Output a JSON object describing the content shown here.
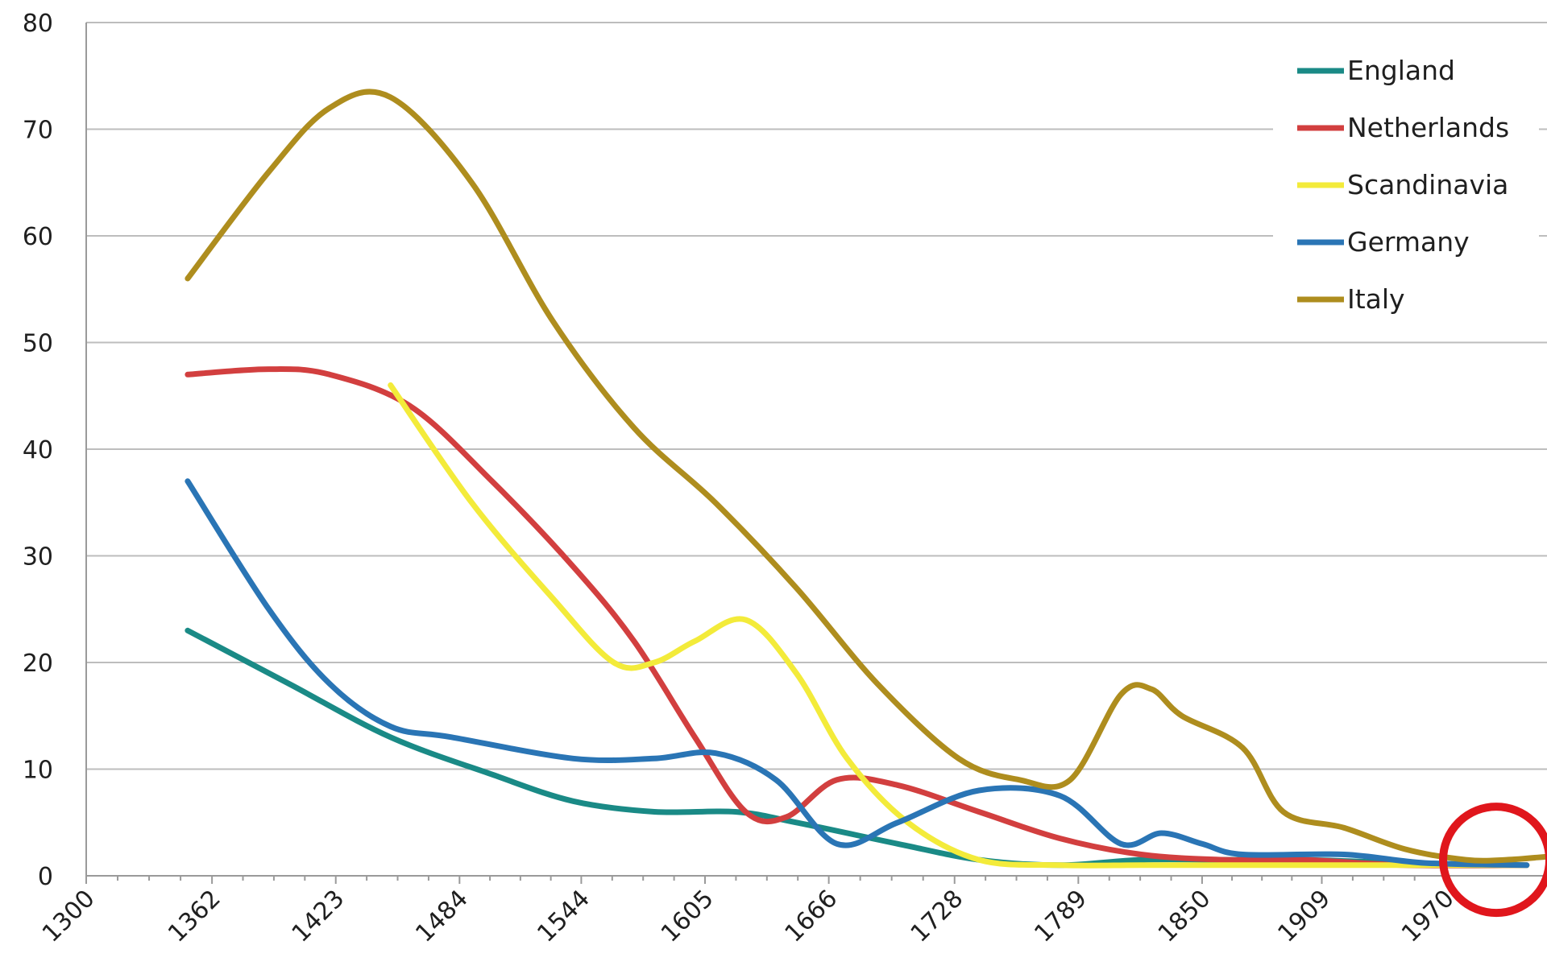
{
  "chart_data": {
    "type": "line",
    "title": "",
    "xlabel": "",
    "ylabel": "",
    "xlim": [
      1300,
      2020
    ],
    "ylim": [
      0,
      80
    ],
    "grid": true,
    "legend_position": "top-right",
    "x_ticks": [
      "1300",
      "1362",
      "1423",
      "1484",
      "1544",
      "1605",
      "1666",
      "1728",
      "1789",
      "1850",
      "1909",
      "1970"
    ],
    "y_ticks": [
      "0",
      "10",
      "20",
      "30",
      "40",
      "50",
      "60",
      "70",
      "80"
    ],
    "series": [
      {
        "name": "England",
        "color": "#1a8a86",
        "points": [
          [
            1350,
            23
          ],
          [
            1400,
            18
          ],
          [
            1450,
            13
          ],
          [
            1500,
            9.5
          ],
          [
            1540,
            7
          ],
          [
            1580,
            6
          ],
          [
            1620,
            6
          ],
          [
            1650,
            5
          ],
          [
            1700,
            3
          ],
          [
            1740,
            1.5
          ],
          [
            1780,
            1
          ],
          [
            1820,
            1.5
          ],
          [
            1860,
            1.5
          ],
          [
            1900,
            1.5
          ],
          [
            1950,
            1.2
          ],
          [
            2010,
            1
          ]
        ]
      },
      {
        "name": "Netherlands",
        "color": "#d23f3f",
        "points": [
          [
            1350,
            47
          ],
          [
            1390,
            47.5
          ],
          [
            1420,
            47
          ],
          [
            1460,
            44
          ],
          [
            1500,
            37
          ],
          [
            1540,
            29
          ],
          [
            1570,
            22
          ],
          [
            1600,
            13
          ],
          [
            1625,
            6
          ],
          [
            1645,
            5.5
          ],
          [
            1670,
            9
          ],
          [
            1700,
            8.5
          ],
          [
            1740,
            6
          ],
          [
            1780,
            3.5
          ],
          [
            1820,
            2
          ],
          [
            1860,
            1.5
          ],
          [
            1900,
            1.5
          ],
          [
            1950,
            1
          ],
          [
            2010,
            1
          ]
        ]
      },
      {
        "name": "Scandinavia",
        "color": "#f3eb3a",
        "points": [
          [
            1450,
            46
          ],
          [
            1490,
            35
          ],
          [
            1530,
            26
          ],
          [
            1560,
            20
          ],
          [
            1580,
            20
          ],
          [
            1600,
            22
          ],
          [
            1625,
            24
          ],
          [
            1650,
            19
          ],
          [
            1675,
            11
          ],
          [
            1705,
            5
          ],
          [
            1740,
            1.5
          ],
          [
            1780,
            1
          ],
          [
            1820,
            1
          ],
          [
            1860,
            1
          ],
          [
            1900,
            1
          ],
          [
            1950,
            1
          ],
          [
            2010,
            1
          ]
        ]
      },
      {
        "name": "Germany",
        "color": "#2a75b5",
        "points": [
          [
            1350,
            37
          ],
          [
            1390,
            25
          ],
          [
            1420,
            18
          ],
          [
            1450,
            14
          ],
          [
            1480,
            13
          ],
          [
            1540,
            11
          ],
          [
            1580,
            11
          ],
          [
            1610,
            11.5
          ],
          [
            1640,
            9
          ],
          [
            1670,
            3
          ],
          [
            1700,
            5
          ],
          [
            1740,
            8
          ],
          [
            1780,
            7.5
          ],
          [
            1810,
            3
          ],
          [
            1830,
            4
          ],
          [
            1850,
            3
          ],
          [
            1870,
            2
          ],
          [
            1920,
            2
          ],
          [
            1960,
            1.2
          ],
          [
            2010,
            1
          ]
        ]
      },
      {
        "name": "Italy",
        "color": "#ae8d1e",
        "points": [
          [
            1350,
            56
          ],
          [
            1390,
            66
          ],
          [
            1420,
            72
          ],
          [
            1450,
            73
          ],
          [
            1490,
            65
          ],
          [
            1530,
            52
          ],
          [
            1570,
            42
          ],
          [
            1610,
            35
          ],
          [
            1650,
            27
          ],
          [
            1690,
            18
          ],
          [
            1730,
            11
          ],
          [
            1760,
            9
          ],
          [
            1785,
            9
          ],
          [
            1810,
            17
          ],
          [
            1825,
            17.5
          ],
          [
            1840,
            15
          ],
          [
            1870,
            12
          ],
          [
            1890,
            6
          ],
          [
            1920,
            4.5
          ],
          [
            1950,
            2.5
          ],
          [
            1980,
            1.5
          ],
          [
            2000,
            1.5
          ],
          [
            2020,
            1.8
          ]
        ]
      }
    ],
    "annotations": [
      {
        "type": "circle",
        "color": "#e0161c",
        "x": 1995,
        "y": 1.5
      }
    ]
  }
}
